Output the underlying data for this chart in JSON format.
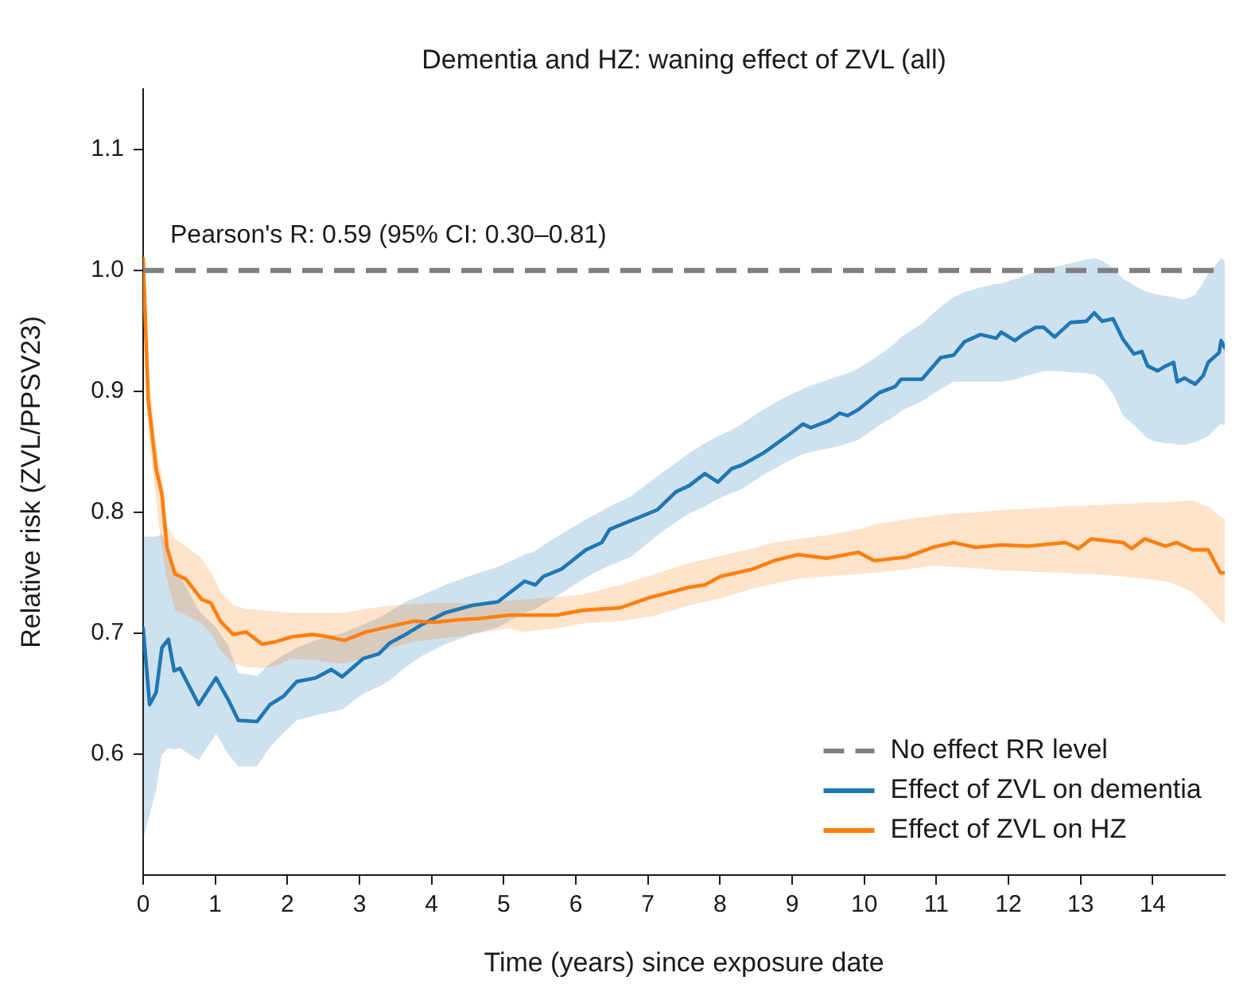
{
  "chart_data": {
    "type": "line",
    "title": "Dementia and HZ: waning effect of ZVL (all)",
    "xlabel": "Time (years) since exposure date",
    "ylabel": "Relative risk (ZVL/PPSV23)",
    "annotations": [
      "Pearson's R: 0.59 (95% CI: 0.30–0.81)"
    ],
    "xlim": [
      0,
      15
    ],
    "xticks": [
      0,
      1,
      2,
      3,
      4,
      5,
      6,
      7,
      8,
      9,
      10,
      11,
      12,
      13,
      14
    ],
    "ylim": [
      0.5,
      1.15
    ],
    "yticks": [
      0.6,
      0.7,
      0.8,
      0.9,
      {
        "value": 1,
        "label": "1.0"
      },
      1.1
    ],
    "grid": false,
    "legend": "bottom right",
    "ref_lines": [
      {
        "axis": "y",
        "value": 1,
        "label": "No effect RR level",
        "color": "#808080",
        "line_style": "dashed"
      }
    ],
    "series": [
      {
        "name": "Effect of ZVL on dementia",
        "color": "#1f77b4",
        "x": [
          0,
          0.09,
          0.18,
          0.26,
          0.35,
          0.43,
          0.51,
          0.77,
          1.01,
          1.18,
          1.32,
          1.58,
          1.76,
          1.95,
          2.13,
          2.39,
          2.61,
          2.76,
          3.05,
          3.27,
          3.42,
          3.64,
          3.89,
          4.19,
          4.56,
          4.92,
          5.29,
          5.44,
          5.55,
          5.8,
          6.14,
          6.36,
          6.47,
          6.76,
          7.13,
          7.39,
          7.57,
          7.79,
          7.97,
          8.16,
          8.3,
          8.6,
          8.93,
          9.15,
          9.26,
          9.52,
          9.66,
          9.77,
          9.92,
          10.21,
          10.43,
          10.51,
          10.8,
          11.06,
          11.24,
          11.39,
          11.61,
          11.83,
          11.9,
          12.09,
          12.2,
          12.38,
          12.49,
          12.64,
          12.86,
          13.08,
          13.19,
          13.3,
          13.45,
          13.59,
          13.74,
          13.85,
          13.93,
          14.07,
          14.18,
          14.29,
          14.34,
          14.44,
          14.59,
          14.7,
          14.77,
          14.92,
          14.95,
          15
        ],
        "values": [
          0.704,
          0.641,
          0.651,
          0.688,
          0.695,
          0.669,
          0.671,
          0.641,
          0.663,
          0.645,
          0.628,
          0.627,
          0.641,
          0.648,
          0.66,
          0.663,
          0.67,
          0.664,
          0.679,
          0.683,
          0.692,
          0.699,
          0.708,
          0.717,
          0.723,
          0.726,
          0.743,
          0.74,
          0.747,
          0.753,
          0.769,
          0.775,
          0.786,
          0.793,
          0.802,
          0.817,
          0.822,
          0.832,
          0.825,
          0.836,
          0.839,
          0.849,
          0.863,
          0.873,
          0.87,
          0.876,
          0.882,
          0.88,
          0.885,
          0.899,
          0.904,
          0.91,
          0.91,
          0.928,
          0.93,
          0.941,
          0.947,
          0.944,
          0.949,
          0.942,
          0.947,
          0.953,
          0.953,
          0.945,
          0.957,
          0.958,
          0.965,
          0.958,
          0.96,
          0.943,
          0.931,
          0.933,
          0.921,
          0.917,
          0.921,
          0.924,
          0.908,
          0.911,
          0.906,
          0.913,
          0.924,
          0.932,
          0.942,
          0.936
        ],
        "lower": [
          0.53,
          0.55,
          0.57,
          0.6,
          0.605,
          0.604,
          0.605,
          0.595,
          0.617,
          0.6,
          0.59,
          0.59,
          0.606,
          0.618,
          0.628,
          0.632,
          0.635,
          0.637,
          0.65,
          0.656,
          0.661,
          0.672,
          0.682,
          0.691,
          0.699,
          0.705,
          0.717,
          0.72,
          0.724,
          0.733,
          0.746,
          0.753,
          0.756,
          0.763,
          0.781,
          0.792,
          0.799,
          0.805,
          0.811,
          0.816,
          0.819,
          0.831,
          0.842,
          0.848,
          0.85,
          0.853,
          0.855,
          0.857,
          0.86,
          0.872,
          0.88,
          0.884,
          0.892,
          0.902,
          0.908,
          0.908,
          0.908,
          0.908,
          0.908,
          0.91,
          0.912,
          0.915,
          0.917,
          0.917,
          0.916,
          0.915,
          0.914,
          0.91,
          0.898,
          0.88,
          0.872,
          0.866,
          0.861,
          0.858,
          0.857,
          0.857,
          0.856,
          0.856,
          0.858,
          0.861,
          0.863,
          0.872,
          0.873,
          0.872
        ],
        "upper": [
          0.78,
          0.78,
          0.78,
          0.782,
          0.77,
          0.755,
          0.748,
          0.719,
          0.705,
          0.69,
          0.667,
          0.665,
          0.675,
          0.682,
          0.688,
          0.694,
          0.698,
          0.7,
          0.707,
          0.713,
          0.718,
          0.726,
          0.732,
          0.74,
          0.748,
          0.755,
          0.765,
          0.768,
          0.773,
          0.782,
          0.794,
          0.801,
          0.805,
          0.813,
          0.83,
          0.841,
          0.849,
          0.857,
          0.863,
          0.868,
          0.873,
          0.885,
          0.896,
          0.902,
          0.905,
          0.91,
          0.913,
          0.915,
          0.919,
          0.93,
          0.94,
          0.945,
          0.956,
          0.97,
          0.978,
          0.982,
          0.986,
          0.989,
          0.989,
          0.993,
          0.995,
          0.999,
          1.001,
          1.003,
          1.006,
          1.009,
          1.01,
          1.008,
          1.002,
          0.993,
          0.988,
          0.984,
          0.982,
          0.98,
          0.979,
          0.978,
          0.977,
          0.976,
          0.98,
          0.99,
          0.997,
          1.008,
          1.01,
          1.008
        ]
      },
      {
        "name": "Effect of ZVL on HZ",
        "color": "#ff7f0e",
        "x": [
          0,
          0.07,
          0.18,
          0.26,
          0.33,
          0.44,
          0.59,
          0.81,
          0.94,
          1.07,
          1.25,
          1.43,
          1.65,
          1.84,
          2.06,
          2.35,
          2.57,
          2.79,
          3.09,
          3.45,
          3.75,
          4.04,
          4.34,
          4.63,
          5.07,
          5.29,
          5.73,
          6.1,
          6.61,
          7.05,
          7.57,
          7.79,
          8.01,
          8.45,
          8.75,
          9.08,
          9.48,
          9.92,
          10.14,
          10.58,
          10.95,
          11.24,
          11.54,
          11.9,
          12.27,
          12.79,
          12.97,
          13.15,
          13.59,
          13.71,
          13.89,
          14.18,
          14.33,
          14.55,
          14.77,
          14.94,
          15
        ],
        "values": [
          1.01,
          0.893,
          0.836,
          0.815,
          0.771,
          0.749,
          0.745,
          0.728,
          0.725,
          0.71,
          0.699,
          0.701,
          0.691,
          0.693,
          0.697,
          0.699,
          0.697,
          0.694,
          0.701,
          0.706,
          0.71,
          0.709,
          0.711,
          0.712,
          0.715,
          0.715,
          0.715,
          0.719,
          0.721,
          0.73,
          0.738,
          0.74,
          0.747,
          0.753,
          0.76,
          0.765,
          0.762,
          0.767,
          0.76,
          0.763,
          0.771,
          0.775,
          0.771,
          0.773,
          0.772,
          0.775,
          0.77,
          0.778,
          0.775,
          0.77,
          0.778,
          0.772,
          0.775,
          0.769,
          0.769,
          0.75,
          0.75
        ],
        "lower": [
          0.99,
          0.867,
          0.81,
          0.77,
          0.745,
          0.719,
          0.715,
          0.708,
          0.7,
          0.686,
          0.675,
          0.672,
          0.671,
          0.673,
          0.679,
          0.678,
          0.676,
          0.675,
          0.68,
          0.688,
          0.693,
          0.695,
          0.697,
          0.7,
          0.704,
          0.701,
          0.704,
          0.708,
          0.71,
          0.714,
          0.723,
          0.726,
          0.729,
          0.737,
          0.741,
          0.745,
          0.747,
          0.749,
          0.75,
          0.753,
          0.756,
          0.755,
          0.754,
          0.752,
          0.751,
          0.75,
          0.749,
          0.749,
          0.747,
          0.746,
          0.745,
          0.743,
          0.74,
          0.734,
          0.722,
          0.71,
          0.708
        ],
        "upper": [
          1.02,
          0.923,
          0.854,
          0.83,
          0.79,
          0.778,
          0.772,
          0.762,
          0.75,
          0.735,
          0.723,
          0.72,
          0.719,
          0.718,
          0.717,
          0.717,
          0.717,
          0.717,
          0.72,
          0.723,
          0.724,
          0.725,
          0.725,
          0.724,
          0.727,
          0.728,
          0.73,
          0.732,
          0.74,
          0.748,
          0.758,
          0.761,
          0.764,
          0.77,
          0.775,
          0.778,
          0.781,
          0.786,
          0.79,
          0.794,
          0.797,
          0.799,
          0.8,
          0.802,
          0.803,
          0.805,
          0.805,
          0.806,
          0.807,
          0.807,
          0.808,
          0.808,
          0.809,
          0.81,
          0.805,
          0.796,
          0.795
        ]
      }
    ]
  }
}
